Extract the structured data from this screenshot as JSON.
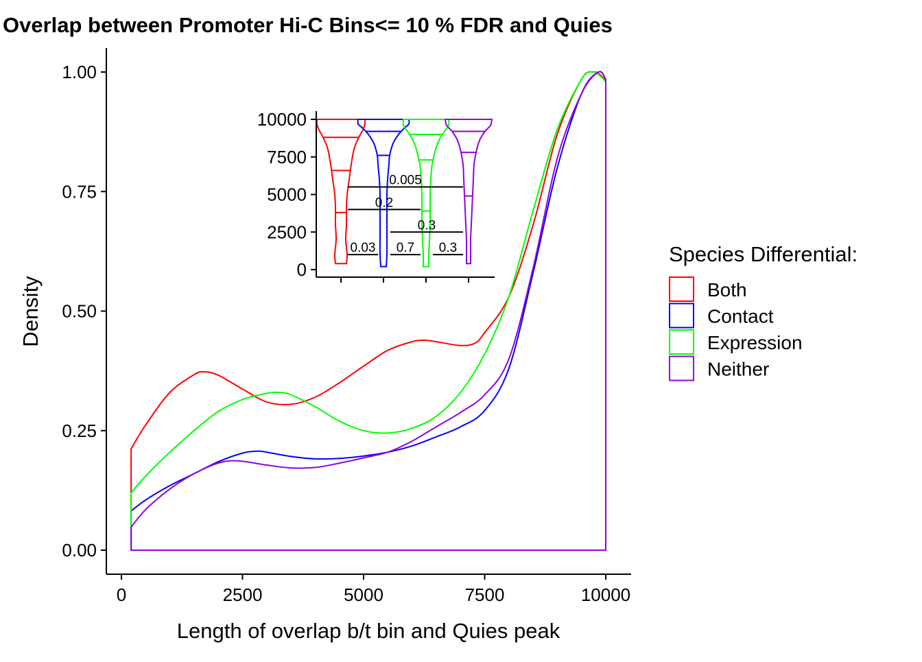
{
  "chart_data": [
    {
      "type": "area",
      "title": "Overlap between Promoter Hi-C Bins<= 10 % FDR and Quies",
      "xlabel": "Length of overlap b/t bin and Quies peak",
      "ylabel": "Density",
      "xlim": [
        -600,
        10500
      ],
      "ylim": [
        -0.05,
        1.05
      ],
      "x_ticks": [
        0,
        2500,
        5000,
        7500,
        10000
      ],
      "x_tick_labels": [
        "0",
        "2500",
        "5000",
        "7500",
        "10000"
      ],
      "y_ticks": [
        0,
        0.25,
        0.5,
        0.75,
        1.0
      ],
      "y_tick_labels": [
        "0.00",
        "0.25",
        "0.50",
        "0.75",
        "1.00"
      ],
      "grid": false,
      "legend": {
        "title": "Species Differential:",
        "position": "right",
        "entries": [
          "Both",
          "Contact",
          "Expression",
          "Neither"
        ]
      },
      "series": [
        {
          "name": "Both",
          "color": "#ff0000",
          "x": [
            200,
            500,
            1000,
            1500,
            1700,
            2000,
            2500,
            3000,
            3500,
            4000,
            4500,
            5000,
            5500,
            6000,
            6250,
            6500,
            7000,
            7300,
            7500,
            8000,
            8500,
            9000,
            9500,
            9750,
            9900,
            10000
          ],
          "y": [
            0.212,
            0.262,
            0.33,
            0.367,
            0.373,
            0.366,
            0.337,
            0.31,
            0.305,
            0.32,
            0.35,
            0.385,
            0.418,
            0.436,
            0.439,
            0.436,
            0.428,
            0.433,
            0.455,
            0.53,
            0.68,
            0.87,
            0.985,
            1.0,
            0.993,
            0.98
          ]
        },
        {
          "name": "Contact",
          "color": "#0000ff",
          "x": [
            200,
            500,
            1000,
            1500,
            2000,
            2500,
            2800,
            3000,
            3500,
            4000,
            4500,
            5000,
            5500,
            6000,
            6500,
            7000,
            7500,
            8000,
            8500,
            9000,
            9500,
            9850,
            10000
          ],
          "y": [
            0.082,
            0.105,
            0.135,
            0.16,
            0.185,
            0.203,
            0.207,
            0.205,
            0.196,
            0.191,
            0.192,
            0.197,
            0.205,
            0.218,
            0.237,
            0.258,
            0.292,
            0.38,
            0.58,
            0.8,
            0.955,
            1.0,
            0.985
          ]
        },
        {
          "name": "Expression",
          "color": "#00ff00",
          "x": [
            200,
            500,
            1000,
            1500,
            2000,
            2500,
            3000,
            3250,
            3500,
            4000,
            4500,
            5000,
            5500,
            6000,
            6500,
            7000,
            7500,
            8000,
            8500,
            9000,
            9500,
            9700,
            9850,
            10000
          ],
          "y": [
            0.12,
            0.155,
            0.205,
            0.25,
            0.29,
            0.315,
            0.328,
            0.33,
            0.325,
            0.3,
            0.27,
            0.25,
            0.245,
            0.255,
            0.28,
            0.33,
            0.41,
            0.53,
            0.71,
            0.88,
            0.985,
            1.0,
            0.995,
            0.98
          ]
        },
        {
          "name": "Neither",
          "color": "#9000e0",
          "x": [
            200,
            500,
            1000,
            1500,
            2000,
            2400,
            3000,
            3500,
            4000,
            4500,
            5000,
            5500,
            6000,
            6500,
            7000,
            7500,
            8000,
            8500,
            9000,
            9500,
            9850,
            10000
          ],
          "y": [
            0.048,
            0.085,
            0.128,
            0.16,
            0.182,
            0.187,
            0.178,
            0.172,
            0.173,
            0.182,
            0.193,
            0.205,
            0.228,
            0.258,
            0.288,
            0.325,
            0.4,
            0.59,
            0.82,
            0.955,
            1.0,
            0.985
          ]
        }
      ]
    },
    {
      "type": "violin",
      "inset": true,
      "ylim": [
        -350,
        10500
      ],
      "y_ticks": [
        0,
        2500,
        5000,
        7500,
        10000
      ],
      "y_tick_labels": [
        "0",
        "2500",
        "5000",
        "7500",
        "10000"
      ],
      "grid": false,
      "groups": [
        {
          "name": "Both",
          "color": "#ff0000",
          "quantiles": [
            3800,
            6600,
            8800
          ],
          "range": [
            400,
            10000
          ],
          "profile": [
            [
              400,
              8
            ],
            [
              1000,
              9
            ],
            [
              2000,
              7
            ],
            [
              3000,
              8
            ],
            [
              4000,
              8
            ],
            [
              5000,
              9
            ],
            [
              6000,
              12
            ],
            [
              7000,
              15
            ],
            [
              8000,
              19
            ],
            [
              8800,
              26
            ],
            [
              9300,
              32
            ],
            [
              9700,
              35
            ],
            [
              10000,
              35
            ]
          ]
        },
        {
          "name": "Contact",
          "color": "#0000ff",
          "quantiles": [
            7600,
            9200
          ],
          "range": [
            200,
            10000
          ],
          "profile": [
            [
              200,
              4
            ],
            [
              1000,
              5
            ],
            [
              2000,
              5
            ],
            [
              3000,
              5
            ],
            [
              4000,
              5
            ],
            [
              5000,
              5
            ],
            [
              6000,
              6
            ],
            [
              7000,
              8
            ],
            [
              7600,
              9
            ],
            [
              8400,
              14
            ],
            [
              9000,
              22
            ],
            [
              9400,
              30
            ],
            [
              9700,
              37
            ],
            [
              10000,
              37
            ]
          ]
        },
        {
          "name": "Expression",
          "color": "#00ff00",
          "quantiles": [
            3900,
            7300,
            9000
          ],
          "range": [
            200,
            10000
          ],
          "profile": [
            [
              200,
              4
            ],
            [
              1000,
              4
            ],
            [
              2000,
              5
            ],
            [
              3000,
              6
            ],
            [
              4000,
              6
            ],
            [
              5000,
              6
            ],
            [
              6000,
              7
            ],
            [
              7000,
              9
            ],
            [
              8000,
              14
            ],
            [
              8700,
              20
            ],
            [
              9200,
              27
            ],
            [
              9600,
              33
            ],
            [
              10000,
              33
            ]
          ]
        },
        {
          "name": "Neither",
          "color": "#9000e0",
          "quantiles": [
            4900,
            7800,
            9200
          ],
          "range": [
            400,
            10000
          ],
          "profile": [
            [
              400,
              3
            ],
            [
              1000,
              3
            ],
            [
              2000,
              3
            ],
            [
              3000,
              4
            ],
            [
              4000,
              5
            ],
            [
              5000,
              6
            ],
            [
              6000,
              7
            ],
            [
              7000,
              8
            ],
            [
              7800,
              11
            ],
            [
              8600,
              16
            ],
            [
              9200,
              24
            ],
            [
              9600,
              32
            ],
            [
              10000,
              34
            ]
          ]
        }
      ],
      "comparisons": [
        {
          "from": "Both",
          "to": "Contact",
          "label": "0.03",
          "y": 1000
        },
        {
          "from": "Contact",
          "to": "Expression",
          "label": "0.7",
          "y": 1000
        },
        {
          "from": "Expression",
          "to": "Neither",
          "label": "0.3",
          "y": 1000
        },
        {
          "from": "Contact",
          "to": "Neither",
          "label": "0.3",
          "y": 2500
        },
        {
          "from": "Both",
          "to": "Expression",
          "label": "0.2",
          "y": 4000
        },
        {
          "from": "Both",
          "to": "Neither",
          "label": "0.005",
          "y": 5500
        }
      ]
    }
  ]
}
